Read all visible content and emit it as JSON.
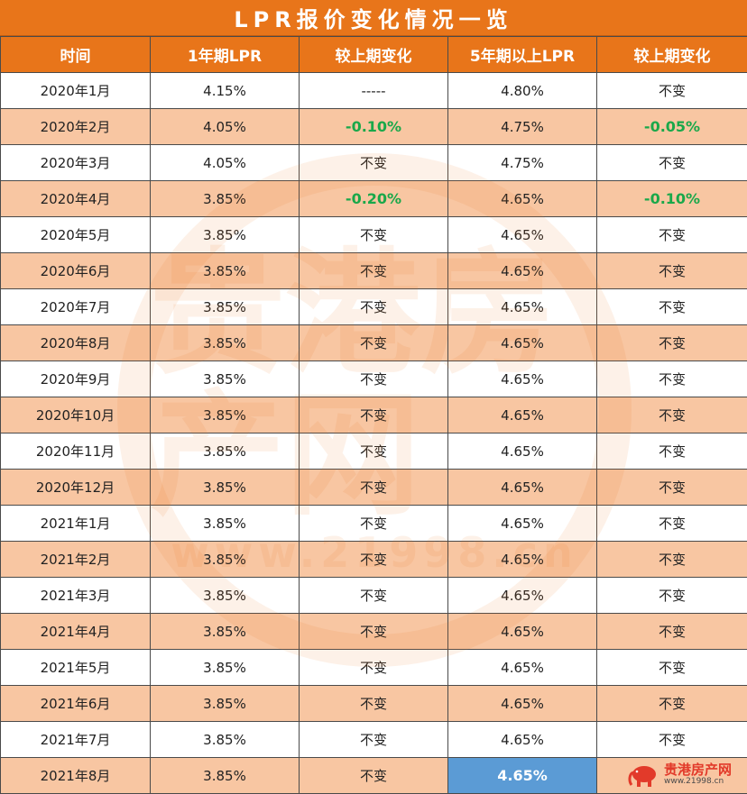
{
  "title": "LPR报价变化情况一览",
  "headers": [
    "时间",
    "1年期LPR",
    "较上期变化",
    "5年期以上LPR",
    "较上期变化"
  ],
  "rows": [
    {
      "date": "2020年1月",
      "lpr1y": "4.15%",
      "chg1y": "-----",
      "lpr5y": "4.80%",
      "chg5y": "不变"
    },
    {
      "date": "2020年2月",
      "lpr1y": "4.05%",
      "chg1y": "-0.10%",
      "lpr5y": "4.75%",
      "chg5y": "-0.05%"
    },
    {
      "date": "2020年3月",
      "lpr1y": "4.05%",
      "chg1y": "不变",
      "lpr5y": "4.75%",
      "chg5y": "不变"
    },
    {
      "date": "2020年4月",
      "lpr1y": "3.85%",
      "chg1y": "-0.20%",
      "lpr5y": "4.65%",
      "chg5y": "-0.10%"
    },
    {
      "date": "2020年5月",
      "lpr1y": "3.85%",
      "chg1y": "不变",
      "lpr5y": "4.65%",
      "chg5y": "不变"
    },
    {
      "date": "2020年6月",
      "lpr1y": "3.85%",
      "chg1y": "不变",
      "lpr5y": "4.65%",
      "chg5y": "不变"
    },
    {
      "date": "2020年7月",
      "lpr1y": "3.85%",
      "chg1y": "不变",
      "lpr5y": "4.65%",
      "chg5y": "不变"
    },
    {
      "date": "2020年8月",
      "lpr1y": "3.85%",
      "chg1y": "不变",
      "lpr5y": "4.65%",
      "chg5y": "不变"
    },
    {
      "date": "2020年9月",
      "lpr1y": "3.85%",
      "chg1y": "不变",
      "lpr5y": "4.65%",
      "chg5y": "不变"
    },
    {
      "date": "2020年10月",
      "lpr1y": "3.85%",
      "chg1y": "不变",
      "lpr5y": "4.65%",
      "chg5y": "不变"
    },
    {
      "date": "2020年11月",
      "lpr1y": "3.85%",
      "chg1y": "不变",
      "lpr5y": "4.65%",
      "chg5y": "不变"
    },
    {
      "date": "2020年12月",
      "lpr1y": "3.85%",
      "chg1y": "不变",
      "lpr5y": "4.65%",
      "chg5y": "不变"
    },
    {
      "date": "2021年1月",
      "lpr1y": "3.85%",
      "chg1y": "不变",
      "lpr5y": "4.65%",
      "chg5y": "不变"
    },
    {
      "date": "2021年2月",
      "lpr1y": "3.85%",
      "chg1y": "不变",
      "lpr5y": "4.65%",
      "chg5y": "不变"
    },
    {
      "date": "2021年3月",
      "lpr1y": "3.85%",
      "chg1y": "不变",
      "lpr5y": "4.65%",
      "chg5y": "不变"
    },
    {
      "date": "2021年4月",
      "lpr1y": "3.85%",
      "chg1y": "不变",
      "lpr5y": "4.65%",
      "chg5y": "不变"
    },
    {
      "date": "2021年5月",
      "lpr1y": "3.85%",
      "chg1y": "不变",
      "lpr5y": "4.65%",
      "chg5y": "不变"
    },
    {
      "date": "2021年6月",
      "lpr1y": "3.85%",
      "chg1y": "不变",
      "lpr5y": "4.65%",
      "chg5y": "不变"
    },
    {
      "date": "2021年7月",
      "lpr1y": "3.85%",
      "chg1y": "不变",
      "lpr5y": "4.65%",
      "chg5y": "不变"
    },
    {
      "date": "2021年8月",
      "lpr1y": "3.85%",
      "chg1y": "不变",
      "lpr5y": "4.65%",
      "chg5y": ""
    }
  ],
  "colors": {
    "header_bg": "#e8751a",
    "stripe_bg": "#f8c6a2",
    "decrease_text": "#1aa84a",
    "highlight_bg": "#5b9bd5"
  },
  "watermark": {
    "big": "贵港房产网",
    "url": "www.21998.cn"
  },
  "logo": {
    "name": "贵港房产网",
    "url": "www.21998.cn",
    "icon": "elephant-icon"
  }
}
